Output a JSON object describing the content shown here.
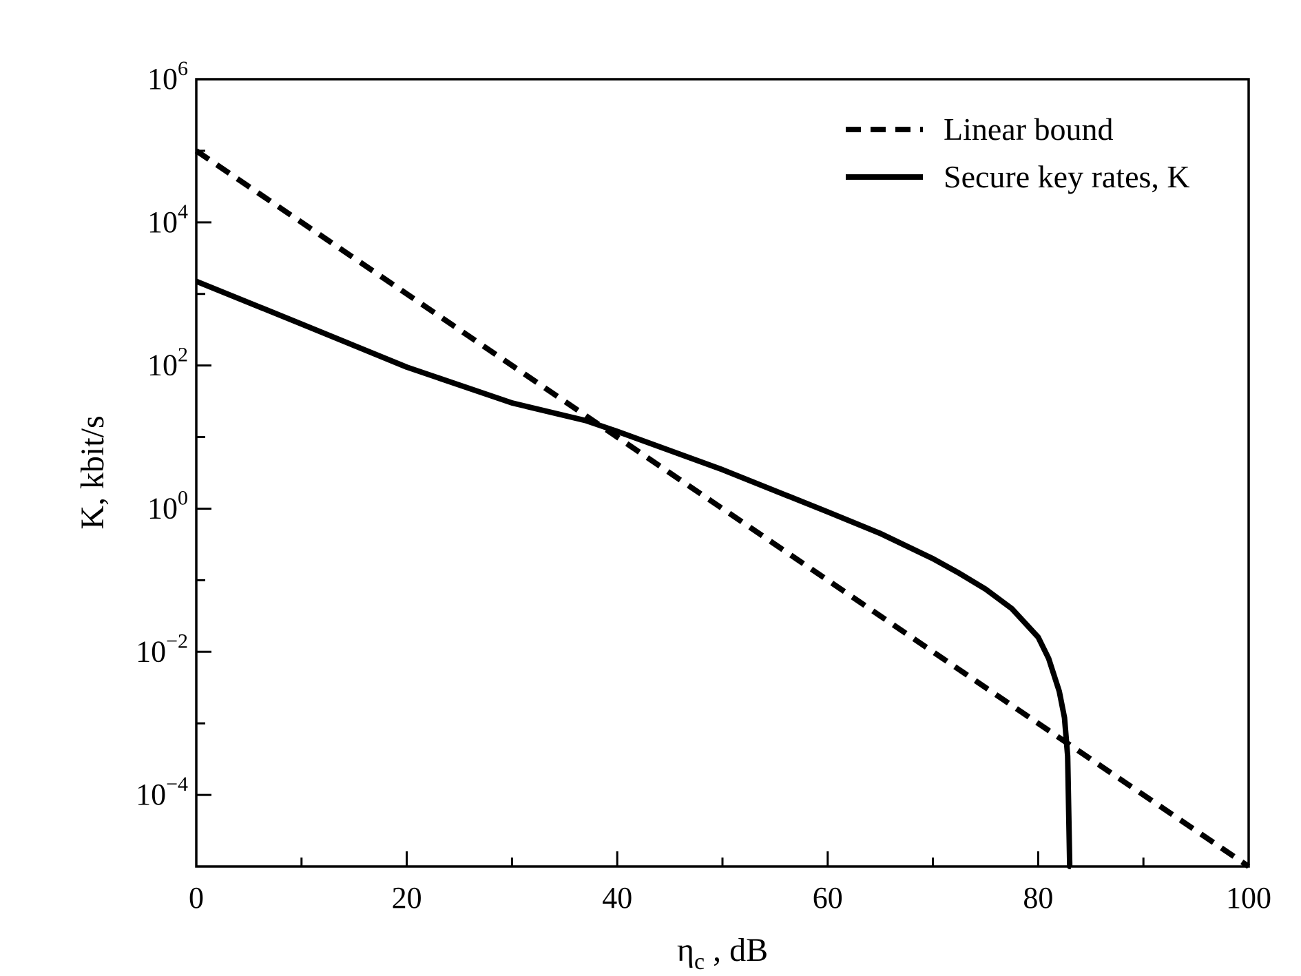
{
  "chart_data": {
    "type": "line",
    "xlabel": "ηc , dB",
    "xlabel_main": "η",
    "xlabel_sub": "c",
    "xlabel_rest": " , dB",
    "ylabel": "K, kbit/s",
    "xlim": [
      0,
      100
    ],
    "ylim_log10": [
      -5,
      6
    ],
    "yscale": "log",
    "grid": false,
    "legend_position": "top-right",
    "x_ticks": [
      0,
      20,
      40,
      60,
      80,
      100
    ],
    "x_minor_ticks": [
      10,
      30,
      50,
      70,
      90
    ],
    "x_tick_labels": [
      "0",
      "20",
      "40",
      "60",
      "80",
      "100"
    ],
    "y_ticks_exp": [
      -4,
      -2,
      0,
      2,
      4,
      6
    ],
    "y_minor_ticks_exp": [
      -5,
      -3,
      -1,
      1,
      3,
      5
    ],
    "y_tick_labels": [
      {
        "base": "10",
        "exp": "−4"
      },
      {
        "base": "10",
        "exp": "−2"
      },
      {
        "base": "10",
        "exp": "0"
      },
      {
        "base": "10",
        "exp": "2"
      },
      {
        "base": "10",
        "exp": "4"
      },
      {
        "base": "10",
        "exp": "6"
      }
    ],
    "series": [
      {
        "name": "Linear bound",
        "style": "dashed",
        "color": "#000000",
        "x": [
          0,
          100
        ],
        "y": [
          100000,
          1e-05
        ]
      },
      {
        "name": "Secure key rates, K",
        "style": "solid",
        "color": "#000000",
        "x": [
          0,
          10,
          20,
          30,
          37,
          40,
          50,
          60,
          65,
          70,
          72.5,
          75,
          77.5,
          80,
          81,
          82,
          82.5,
          82.8,
          83,
          83.1
        ],
        "y": [
          1500,
          380,
          95,
          30,
          17,
          12,
          3.5,
          0.9,
          0.45,
          0.2,
          0.125,
          0.075,
          0.04,
          0.016,
          0.008,
          0.0028,
          0.0012,
          0.00035,
          1e-05,
          1e-05
        ]
      }
    ]
  }
}
